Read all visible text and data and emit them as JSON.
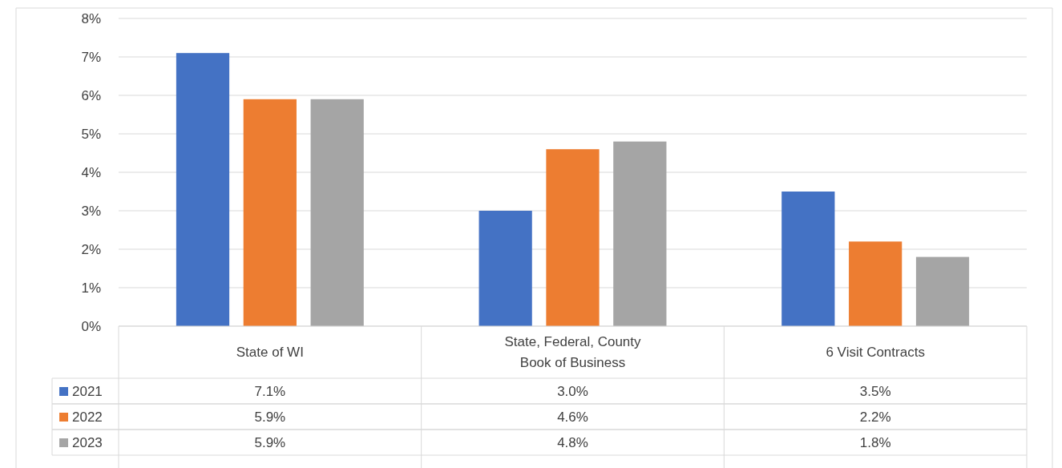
{
  "chart_data": {
    "type": "bar",
    "categories": [
      "State of WI",
      "State, Federal, County Book of Business",
      "6 Visit Contracts"
    ],
    "series": [
      {
        "name": "2021",
        "color": "#4472c4",
        "values": [
          7.1,
          3.0,
          3.5
        ],
        "value_labels": [
          "7.1%",
          "3.0%",
          "3.5%"
        ]
      },
      {
        "name": "2022",
        "color": "#ed7d31",
        "values": [
          5.9,
          4.6,
          2.2
        ],
        "value_labels": [
          "5.9%",
          "4.6%",
          "2.2%"
        ]
      },
      {
        "name": "2023",
        "color": "#a5a5a5",
        "values": [
          5.9,
          4.8,
          1.8
        ],
        "value_labels": [
          "5.9%",
          "4.8%",
          "1.8%"
        ]
      }
    ],
    "ylim": [
      0,
      8
    ],
    "yticks": [
      {
        "value": 0,
        "label": "0%"
      },
      {
        "value": 1,
        "label": "1%"
      },
      {
        "value": 2,
        "label": "2%"
      },
      {
        "value": 3,
        "label": "3%"
      },
      {
        "value": 4,
        "label": "4%"
      },
      {
        "value": 5,
        "label": "5%"
      },
      {
        "value": 6,
        "label": "6%"
      },
      {
        "value": 7,
        "label": "7%"
      },
      {
        "value": 8,
        "label": "8%"
      }
    ],
    "grid": "y",
    "legend": "bottom"
  }
}
